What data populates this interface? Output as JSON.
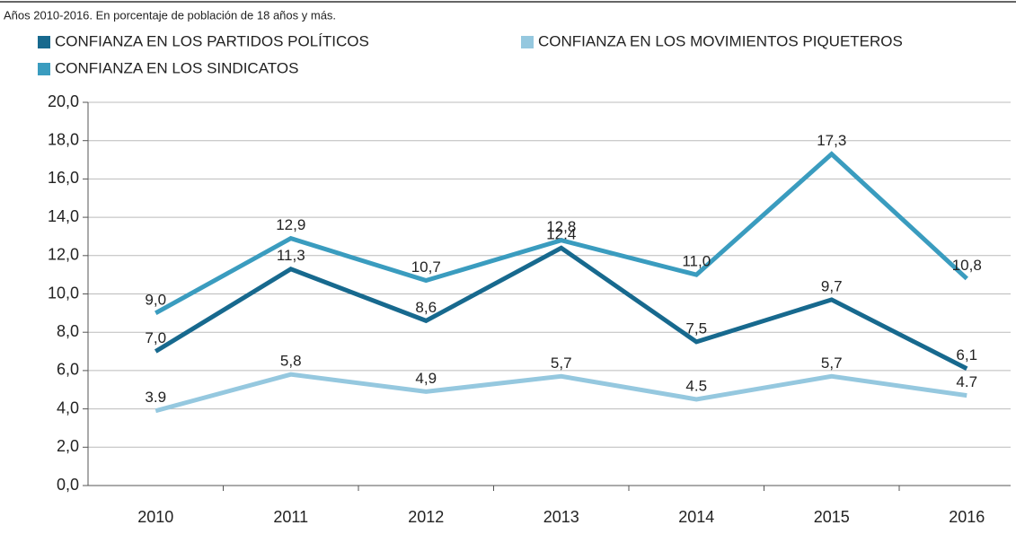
{
  "chart_data": {
    "type": "line",
    "subtitle": "Años 2010-2016. En porcentaje de población de 18 años y más.",
    "categories": [
      "2010",
      "2011",
      "2012",
      "2013",
      "2014",
      "2015",
      "2016"
    ],
    "series": [
      {
        "name": "CONFIANZA EN LOS PARTIDOS POLÍTICOS",
        "color": "#17698e",
        "values": [
          7.0,
          11.3,
          8.6,
          12.4,
          7.5,
          9.7,
          6.1
        ],
        "value_labels": [
          "7,0",
          "11,3",
          "8,6",
          "12,4",
          "7,5",
          "9,7",
          "6,1"
        ]
      },
      {
        "name": "CONFIANZA EN LOS MOVIMIENTOS PIQUETEROS",
        "color": "#95c8df",
        "values": [
          3.9,
          5.8,
          4.9,
          5.7,
          4.5,
          5.7,
          4.7
        ],
        "value_labels": [
          "3.9",
          "5,8",
          "4,9",
          "5,7",
          "4.5",
          "5,7",
          "4.7"
        ]
      },
      {
        "name": "CONFIANZA EN LOS SINDICATOS",
        "color": "#3a9cbf",
        "values": [
          9.0,
          12.9,
          10.7,
          12.8,
          11.0,
          17.3,
          10.8
        ],
        "value_labels": [
          "9,0",
          "12,9",
          "10,7",
          "12,8",
          "11,0",
          "17,3",
          "10,8"
        ]
      }
    ],
    "ylim": [
      0,
      20
    ],
    "yticks": [
      {
        "value": 0,
        "label": "0,0"
      },
      {
        "value": 2,
        "label": "2,0"
      },
      {
        "value": 4,
        "label": "4,0"
      },
      {
        "value": 6,
        "label": "6,0"
      },
      {
        "value": 8,
        "label": "8,0"
      },
      {
        "value": 10,
        "label": "10,0"
      },
      {
        "value": 12,
        "label": "12,0"
      },
      {
        "value": 14,
        "label": "14,0"
      },
      {
        "value": 16,
        "label": "16,0"
      },
      {
        "value": 18,
        "label": "18,0"
      },
      {
        "value": 20,
        "label": "20,0"
      }
    ],
    "grid": true
  }
}
